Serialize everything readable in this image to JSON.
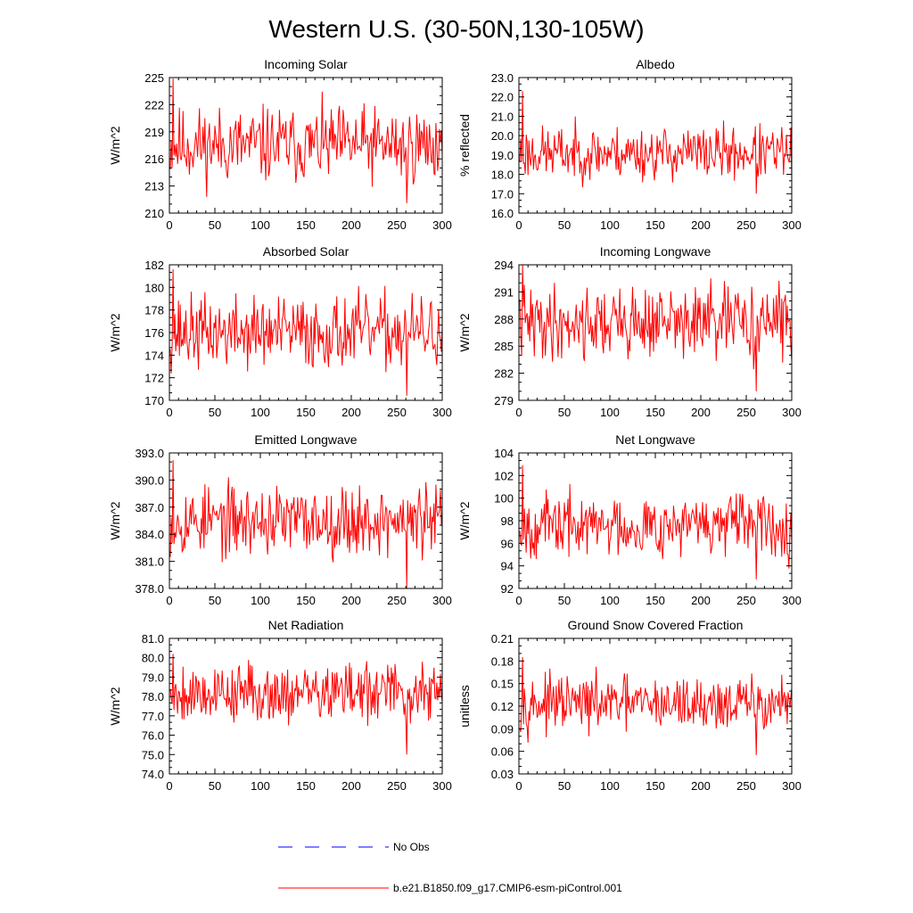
{
  "title": "Western U.S. (30-50N,130-105W)",
  "colors": {
    "series": "#ff0000",
    "obs": "#0000ff",
    "axis": "#000000",
    "background": "#ffffff"
  },
  "legend": {
    "position": "bottom-left",
    "items": [
      {
        "label": "No Obs",
        "style": "dashed",
        "color": "#0000ff"
      },
      {
        "label": "b.e21.B1850.f09_g17.CMIP6-esm-piControl.001",
        "style": "solid",
        "color": "#ff0000"
      }
    ]
  },
  "chart_data": [
    {
      "type": "line",
      "title": "Incoming Solar",
      "ylabel": "W/m^2",
      "xlabel": "",
      "xlim": [
        0,
        300
      ],
      "ylim": [
        210,
        225
      ],
      "xticks": [
        0,
        50,
        100,
        150,
        200,
        250,
        300
      ],
      "yticks": [
        210,
        213,
        216,
        219,
        222,
        225
      ],
      "ytick_labels": [
        "210",
        "213",
        "216",
        "219",
        "222",
        "225"
      ],
      "series": [
        {
          "name": "b.e21.B1850.f09_g17.CMIP6-esm-piControl.001",
          "mean": 217.5,
          "amp": 2.6,
          "min": 211.1,
          "max": 224.9,
          "n": 300,
          "seed": 11
        }
      ]
    },
    {
      "type": "line",
      "title": "Albedo",
      "ylabel": "% reflected",
      "xlabel": "",
      "xlim": [
        0,
        300
      ],
      "ylim": [
        16.0,
        23.0
      ],
      "xticks": [
        0,
        50,
        100,
        150,
        200,
        250,
        300
      ],
      "yticks": [
        16,
        17,
        18,
        19,
        20,
        21,
        22,
        23
      ],
      "ytick_labels": [
        "16.0",
        "17.0",
        "18.0",
        "19.0",
        "20.0",
        "21.0",
        "22.0",
        "23.0"
      ],
      "series": [
        {
          "name": "b.e21.B1850.f09_g17.CMIP6-esm-piControl.001",
          "mean": 19.1,
          "amp": 0.85,
          "min": 17.0,
          "max": 22.3,
          "n": 300,
          "seed": 23
        }
      ]
    },
    {
      "type": "line",
      "title": "Absorbed Solar",
      "ylabel": "W/m^2",
      "xlabel": "",
      "xlim": [
        0,
        300
      ],
      "ylim": [
        170,
        182
      ],
      "xticks": [
        0,
        50,
        100,
        150,
        200,
        250,
        300
      ],
      "yticks": [
        170,
        172,
        174,
        176,
        178,
        180,
        182
      ],
      "ytick_labels": [
        "170",
        "172",
        "174",
        "176",
        "178",
        "180",
        "182"
      ],
      "series": [
        {
          "name": "b.e21.B1850.f09_g17.CMIP6-esm-piControl.001",
          "mean": 176.0,
          "amp": 2.0,
          "min": 170.4,
          "max": 181.6,
          "n": 300,
          "seed": 37
        }
      ]
    },
    {
      "type": "line",
      "title": "Incoming Longwave",
      "ylabel": "W/m^2",
      "xlabel": "",
      "xlim": [
        0,
        300
      ],
      "ylim": [
        279,
        294
      ],
      "xticks": [
        0,
        50,
        100,
        150,
        200,
        250,
        300
      ],
      "yticks": [
        279,
        282,
        285,
        288,
        291,
        294
      ],
      "ytick_labels": [
        "279",
        "282",
        "285",
        "288",
        "291",
        "294"
      ],
      "series": [
        {
          "name": "b.e21.B1850.f09_g17.CMIP6-esm-piControl.001",
          "mean": 287.6,
          "amp": 2.5,
          "min": 280.0,
          "max": 294.0,
          "n": 300,
          "seed": 41
        }
      ]
    },
    {
      "type": "line",
      "title": "Emitted Longwave",
      "ylabel": "W/m^2",
      "xlabel": "",
      "xlim": [
        0,
        300
      ],
      "ylim": [
        378.0,
        393.0
      ],
      "xticks": [
        0,
        50,
        100,
        150,
        200,
        250,
        300
      ],
      "yticks": [
        378,
        381,
        384,
        387,
        390,
        393
      ],
      "ytick_labels": [
        "378.0",
        "381.0",
        "384.0",
        "387.0",
        "390.0",
        "393.0"
      ],
      "series": [
        {
          "name": "b.e21.B1850.f09_g17.CMIP6-esm-piControl.001",
          "mean": 385.5,
          "amp": 2.4,
          "min": 378.0,
          "max": 392.2,
          "n": 300,
          "seed": 53
        }
      ]
    },
    {
      "type": "line",
      "title": "Net Longwave",
      "ylabel": "W/m^2",
      "xlabel": "",
      "xlim": [
        0,
        300
      ],
      "ylim": [
        92,
        104
      ],
      "xticks": [
        0,
        50,
        100,
        150,
        200,
        250,
        300
      ],
      "yticks": [
        92,
        94,
        96,
        98,
        100,
        102,
        104
      ],
      "ytick_labels": [
        "92",
        "94",
        "96",
        "98",
        "100",
        "102",
        "104"
      ],
      "series": [
        {
          "name": "b.e21.B1850.f09_g17.CMIP6-esm-piControl.001",
          "mean": 97.6,
          "amp": 1.7,
          "min": 92.8,
          "max": 102.9,
          "n": 300,
          "seed": 67
        }
      ]
    },
    {
      "type": "line",
      "title": "Net Radiation",
      "ylabel": "W/m^2",
      "xlabel": "",
      "xlim": [
        0,
        300
      ],
      "ylim": [
        74.0,
        81.0
      ],
      "xticks": [
        0,
        50,
        100,
        150,
        200,
        250,
        300
      ],
      "yticks": [
        74,
        75,
        76,
        77,
        78,
        79,
        80,
        81
      ],
      "ytick_labels": [
        "74.0",
        "75.0",
        "76.0",
        "77.0",
        "78.0",
        "79.0",
        "80.0",
        "81.0"
      ],
      "series": [
        {
          "name": "b.e21.B1850.f09_g17.CMIP6-esm-piControl.001",
          "mean": 78.2,
          "amp": 0.95,
          "min": 75.0,
          "max": 80.2,
          "n": 300,
          "seed": 79
        }
      ]
    },
    {
      "type": "line",
      "title": "Ground Snow Covered Fraction",
      "ylabel": "unitless",
      "xlabel": "",
      "xlim": [
        0,
        300
      ],
      "ylim": [
        0.03,
        0.21
      ],
      "xticks": [
        0,
        50,
        100,
        150,
        200,
        250,
        300
      ],
      "yticks": [
        0.03,
        0.06,
        0.09,
        0.12,
        0.15,
        0.18,
        0.21
      ],
      "ytick_labels": [
        "0.03",
        "0.06",
        "0.09",
        "0.12",
        "0.15",
        "0.18",
        "0.21"
      ],
      "series": [
        {
          "name": "b.e21.B1850.f09_g17.CMIP6-esm-piControl.001",
          "mean": 0.123,
          "amp": 0.022,
          "min": 0.055,
          "max": 0.185,
          "n": 300,
          "seed": 97
        }
      ]
    }
  ]
}
